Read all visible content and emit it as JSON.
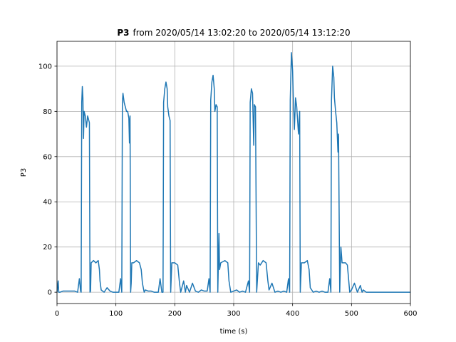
{
  "chart_data": {
    "type": "line",
    "title": {
      "bold": "P3",
      "rest": "from 2020/05/14 13:02:20 to 2020/05/14 13:12:20"
    },
    "xlabel": "time (s)",
    "ylabel": "P3",
    "xlim": [
      0,
      600
    ],
    "ylim": [
      -5,
      111
    ],
    "xticks": [
      0,
      100,
      200,
      300,
      400,
      500,
      600
    ],
    "yticks": [
      0,
      20,
      40,
      60,
      80,
      100
    ],
    "grid": true,
    "x": [
      0,
      2,
      3,
      5,
      10,
      20,
      30,
      35,
      38,
      40,
      41,
      42,
      43,
      44,
      45,
      46,
      48,
      50,
      52,
      54,
      55,
      56,
      57,
      58,
      62,
      66,
      70,
      72,
      73,
      75,
      80,
      85,
      90,
      95,
      100,
      105,
      108,
      110,
      111,
      112,
      114,
      116,
      118,
      120,
      122,
      123,
      124,
      125,
      126,
      127,
      130,
      135,
      140,
      143,
      145,
      148,
      150,
      155,
      160,
      165,
      172,
      175,
      178,
      180,
      181,
      183,
      185,
      187,
      188,
      190,
      192,
      193,
      195,
      200,
      205,
      208,
      210,
      215,
      218,
      220,
      225,
      230,
      235,
      240,
      245,
      250,
      255,
      258,
      260,
      261,
      263,
      265,
      267,
      268,
      270,
      272,
      273,
      275,
      276,
      278,
      285,
      290,
      292,
      295,
      300,
      305,
      310,
      315,
      320,
      325,
      327,
      328,
      330,
      332,
      334,
      335,
      337,
      339,
      342,
      345,
      350,
      355,
      358,
      360,
      365,
      370,
      375,
      380,
      385,
      390,
      393,
      395,
      396,
      398,
      400,
      401,
      403,
      405,
      407,
      410,
      412,
      413,
      415,
      420,
      425,
      428,
      430,
      435,
      440,
      445,
      450,
      455,
      460,
      463,
      465,
      466,
      468,
      470,
      471,
      473,
      475,
      477,
      478,
      480,
      482,
      484,
      490,
      493,
      495,
      497,
      500,
      505,
      510,
      515,
      518,
      520,
      525,
      600
    ],
    "series": [
      {
        "name": "P3",
        "color": "#1f77b4",
        "values": [
          0,
          5,
          0,
          0,
          0.5,
          0.5,
          0.5,
          0,
          6,
          0.5,
          0,
          84,
          91,
          86,
          68,
          80,
          78,
          73,
          78,
          76,
          75,
          0,
          0.5,
          13,
          14,
          13,
          14,
          10,
          5,
          1,
          0,
          2,
          0.5,
          0,
          0,
          0,
          6,
          0,
          84,
          88,
          84,
          82,
          80,
          80,
          77,
          66,
          78,
          0,
          4,
          13,
          13,
          14,
          13,
          10,
          4,
          0,
          1,
          0.5,
          0.5,
          0,
          0,
          6,
          0,
          0,
          84,
          90,
          93,
          90,
          82,
          78,
          76,
          0,
          13,
          13,
          12,
          4,
          0,
          5,
          0,
          3,
          0,
          4,
          0.5,
          0,
          1,
          0.5,
          0.5,
          6,
          0,
          85,
          93,
          96,
          90,
          80,
          83,
          82,
          0,
          26,
          10,
          13,
          14,
          13,
          5,
          0,
          0.5,
          1,
          0,
          0.5,
          0,
          5,
          0,
          84,
          90,
          88,
          65,
          83,
          82,
          0,
          13,
          12,
          14,
          13,
          5,
          1,
          4,
          0,
          0.5,
          0,
          0.5,
          0,
          6,
          0,
          85,
          106,
          98,
          88,
          72,
          86,
          82,
          70,
          80,
          0,
          13,
          13,
          14,
          10,
          2,
          0,
          0.5,
          0,
          0.5,
          0,
          0,
          6,
          0,
          85,
          100,
          95,
          86,
          80,
          75,
          62,
          70,
          0,
          20,
          13,
          13,
          12,
          6,
          0,
          1,
          4,
          0,
          3,
          0,
          1,
          0,
          0
        ]
      }
    ]
  }
}
